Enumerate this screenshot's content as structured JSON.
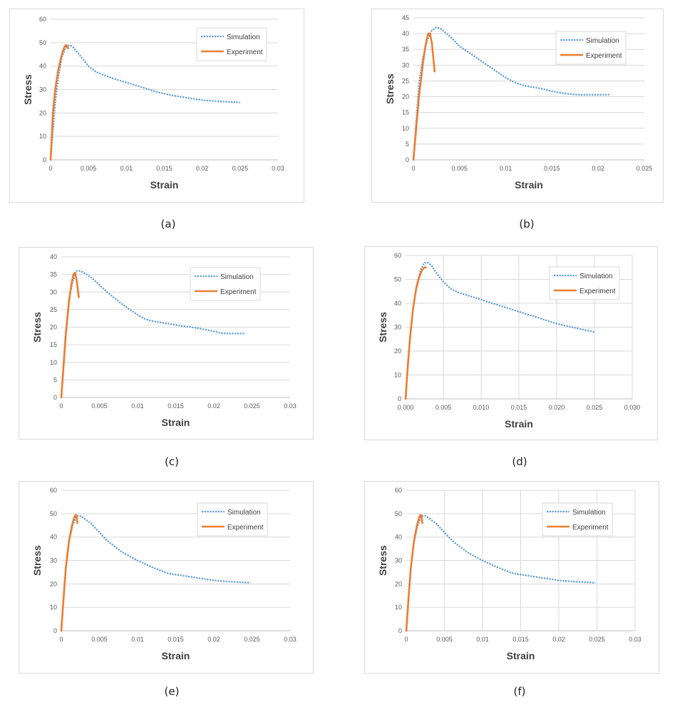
{
  "figure": {
    "captions": [
      "(a)",
      "(b)",
      "(c)",
      "(d)",
      "(e)",
      "(f)"
    ]
  },
  "colors": {
    "simulation": "#5B9BD5",
    "experiment": "#ED7D31",
    "grid": "#d9d9d9",
    "axis": "#bfbfbf"
  },
  "chart_data": [
    {
      "type": "line",
      "xlabel": "Strain",
      "ylabel": "Stress",
      "xlim": [
        0,
        0.03
      ],
      "ylim": [
        0,
        60
      ],
      "xticks": [
        "0",
        "0.005",
        "0.01",
        "0.015",
        "0.02",
        "0.025",
        "0.03"
      ],
      "yticks": [
        "0",
        "10",
        "20",
        "30",
        "40",
        "50",
        "60"
      ],
      "legend_position": "top-right",
      "grid": "horizontal",
      "series": [
        {
          "name": "Simulation",
          "style": "dotted",
          "x": [
            0,
            0.0003,
            0.0006,
            0.001,
            0.0015,
            0.002,
            0.0025,
            0.003,
            0.004,
            0.005,
            0.006,
            0.008,
            0.01,
            0.012,
            0.014,
            0.016,
            0.018,
            0.02,
            0.022,
            0.025
          ],
          "y": [
            0,
            12,
            24,
            35,
            44,
            48,
            49,
            48,
            44,
            40,
            37.5,
            35,
            33,
            31,
            29,
            27.5,
            26.5,
            25.5,
            25,
            24.5
          ]
        },
        {
          "name": "Experiment",
          "style": "solid",
          "x": [
            0,
            0.0003,
            0.0006,
            0.001,
            0.0014,
            0.0018,
            0.002,
            0.0022,
            0.0023
          ],
          "y": [
            0,
            20,
            30,
            38,
            44,
            48,
            49,
            48.5,
            47.5
          ]
        }
      ]
    },
    {
      "type": "line",
      "xlabel": "Strain",
      "ylabel": "Stress",
      "xlim": [
        0,
        0.025
      ],
      "ylim": [
        0,
        45
      ],
      "xticks": [
        "0",
        "0.005",
        "0.01",
        "0.015",
        "0.02",
        "0.025"
      ],
      "yticks": [
        "0",
        "5",
        "10",
        "15",
        "20",
        "25",
        "30",
        "35",
        "40",
        "45"
      ],
      "legend_position": "top-right",
      "grid": "horizontal",
      "series": [
        {
          "name": "Simulation",
          "style": "dotted",
          "x": [
            0,
            0.0003,
            0.0006,
            0.001,
            0.0015,
            0.002,
            0.0025,
            0.003,
            0.004,
            0.005,
            0.006,
            0.007,
            0.008,
            0.009,
            0.01,
            0.011,
            0.012,
            0.013,
            0.014,
            0.015,
            0.016,
            0.017,
            0.018,
            0.019,
            0.02,
            0.0212
          ],
          "y": [
            0,
            12,
            24,
            32,
            38,
            41,
            42,
            41.5,
            39,
            36,
            34,
            32,
            30,
            28,
            26,
            24.5,
            23.5,
            23,
            22.5,
            21.7,
            21.2,
            20.8,
            20.6,
            20.6,
            20.6,
            20.7
          ]
        },
        {
          "name": "Experiment",
          "style": "solid",
          "x": [
            0,
            0.0003,
            0.0006,
            0.001,
            0.0013,
            0.0016,
            0.0018,
            0.002,
            0.0021,
            0.0022,
            0.0023
          ],
          "y": [
            0,
            10,
            20,
            30,
            36,
            40,
            40,
            37,
            34,
            31,
            28
          ]
        }
      ]
    },
    {
      "type": "line",
      "xlabel": "Strain",
      "ylabel": "Stress",
      "xlim": [
        0,
        0.03
      ],
      "ylim": [
        0,
        40
      ],
      "xticks": [
        "0",
        "0.005",
        "0.01",
        "0.015",
        "0.02",
        "0.025",
        "0.03"
      ],
      "yticks": [
        "0",
        "5",
        "10",
        "15",
        "20",
        "25",
        "30",
        "35",
        "40"
      ],
      "legend_position": "top-right",
      "grid": "horizontal",
      "series": [
        {
          "name": "Simulation",
          "style": "dotted",
          "x": [
            0,
            0.0003,
            0.0006,
            0.001,
            0.0015,
            0.002,
            0.0025,
            0.003,
            0.004,
            0.005,
            0.006,
            0.008,
            0.01,
            0.011,
            0.012,
            0.014,
            0.016,
            0.018,
            0.02,
            0.021,
            0.022,
            0.024
          ],
          "y": [
            0,
            10,
            19,
            28,
            33,
            36,
            36,
            35.5,
            34,
            32,
            30,
            26.5,
            23.5,
            22.3,
            21.7,
            21,
            20.3,
            19.7,
            18.8,
            18.3,
            18.2,
            18.2
          ]
        },
        {
          "name": "Experiment",
          "style": "solid",
          "x": [
            0,
            0.0003,
            0.0006,
            0.001,
            0.0013,
            0.0016,
            0.0018,
            0.002,
            0.0021,
            0.0022,
            0.0023
          ],
          "y": [
            0,
            9,
            18,
            27,
            32,
            35,
            35.5,
            33.5,
            32,
            30,
            28.5
          ]
        }
      ]
    },
    {
      "type": "line",
      "xlabel": "Strain",
      "ylabel": "Stress",
      "xlim": [
        0,
        0.03
      ],
      "ylim": [
        0,
        60
      ],
      "xticks": [
        "0.000",
        "0.005",
        "0.010",
        "0.015",
        "0.020",
        "0.025",
        "0.030"
      ],
      "yticks": [
        "0",
        "10",
        "20",
        "30",
        "40",
        "50",
        "60"
      ],
      "legend_position": "top-right",
      "grid": "both",
      "series": [
        {
          "name": "Simulation",
          "style": "dotted",
          "x": [
            0,
            0.0003,
            0.0006,
            0.001,
            0.0015,
            0.002,
            0.0025,
            0.003,
            0.0035,
            0.004,
            0.005,
            0.006,
            0.007,
            0.008,
            0.01,
            0.012,
            0.014,
            0.016,
            0.018,
            0.02,
            0.022,
            0.025
          ],
          "y": [
            0,
            14,
            26,
            38,
            48,
            54,
            57,
            57,
            55.5,
            53,
            49,
            46,
            44.5,
            43.5,
            41.5,
            39.5,
            37.5,
            35.5,
            33.5,
            31.5,
            30,
            28
          ]
        },
        {
          "name": "Experiment",
          "style": "solid",
          "x": [
            0,
            0.0003,
            0.0006,
            0.001,
            0.0014,
            0.0018,
            0.0022,
            0.0025,
            0.0027
          ],
          "y": [
            0,
            14,
            26,
            38,
            46,
            51,
            54,
            55,
            55
          ]
        }
      ]
    },
    {
      "type": "line",
      "xlabel": "Strain",
      "ylabel": "Stress",
      "xlim": [
        0,
        0.03
      ],
      "ylim": [
        0,
        60
      ],
      "xticks": [
        "0",
        "0.005",
        "0.01",
        "0.015",
        "0.02",
        "0.025",
        "0.03"
      ],
      "yticks": [
        "0",
        "10",
        "20",
        "30",
        "40",
        "50",
        "60"
      ],
      "legend_position": "top-right",
      "grid": "horizontal",
      "series": [
        {
          "name": "Simulation",
          "style": "dotted",
          "x": [
            0,
            0.0003,
            0.0006,
            0.001,
            0.0015,
            0.002,
            0.0025,
            0.003,
            0.004,
            0.005,
            0.006,
            0.008,
            0.01,
            0.012,
            0.014,
            0.016,
            0.018,
            0.02,
            0.022,
            0.0248
          ],
          "y": [
            0,
            14,
            27,
            38,
            45,
            49,
            49,
            48,
            45.5,
            42,
            38.5,
            33.5,
            30,
            27,
            24.5,
            23.5,
            22.5,
            21.5,
            21,
            20.5
          ]
        },
        {
          "name": "Experiment",
          "style": "solid",
          "x": [
            0,
            0.0003,
            0.0006,
            0.001,
            0.0014,
            0.0017,
            0.0019,
            0.002,
            0.0021
          ],
          "y": [
            0,
            14,
            27,
            38,
            45,
            48.5,
            49.5,
            49,
            46
          ]
        }
      ]
    },
    {
      "type": "line",
      "xlabel": "Strain",
      "ylabel": "Stress",
      "xlim": [
        0,
        0.03
      ],
      "ylim": [
        0,
        60
      ],
      "xticks": [
        "0",
        "0.005",
        "0.01",
        "0.015",
        "0.02",
        "0.025",
        "0.03"
      ],
      "yticks": [
        "0",
        "10",
        "20",
        "30",
        "40",
        "50",
        "60"
      ],
      "legend_position": "top-right",
      "grid": "both",
      "series": [
        {
          "name": "Simulation",
          "style": "dotted",
          "x": [
            0,
            0.0003,
            0.0006,
            0.001,
            0.0015,
            0.002,
            0.0025,
            0.003,
            0.004,
            0.005,
            0.006,
            0.008,
            0.01,
            0.012,
            0.014,
            0.016,
            0.018,
            0.02,
            0.022,
            0.0248
          ],
          "y": [
            0,
            14,
            27,
            38,
            45,
            49,
            49,
            48,
            45.5,
            42,
            38.5,
            33.5,
            30,
            27,
            24.5,
            23.5,
            22.5,
            21.5,
            21,
            20.5
          ]
        },
        {
          "name": "Experiment",
          "style": "solid",
          "x": [
            0,
            0.0003,
            0.0006,
            0.001,
            0.0014,
            0.0017,
            0.0019,
            0.002,
            0.0021
          ],
          "y": [
            0,
            14,
            27,
            38,
            45,
            48.5,
            49.5,
            49,
            46
          ]
        }
      ]
    }
  ]
}
